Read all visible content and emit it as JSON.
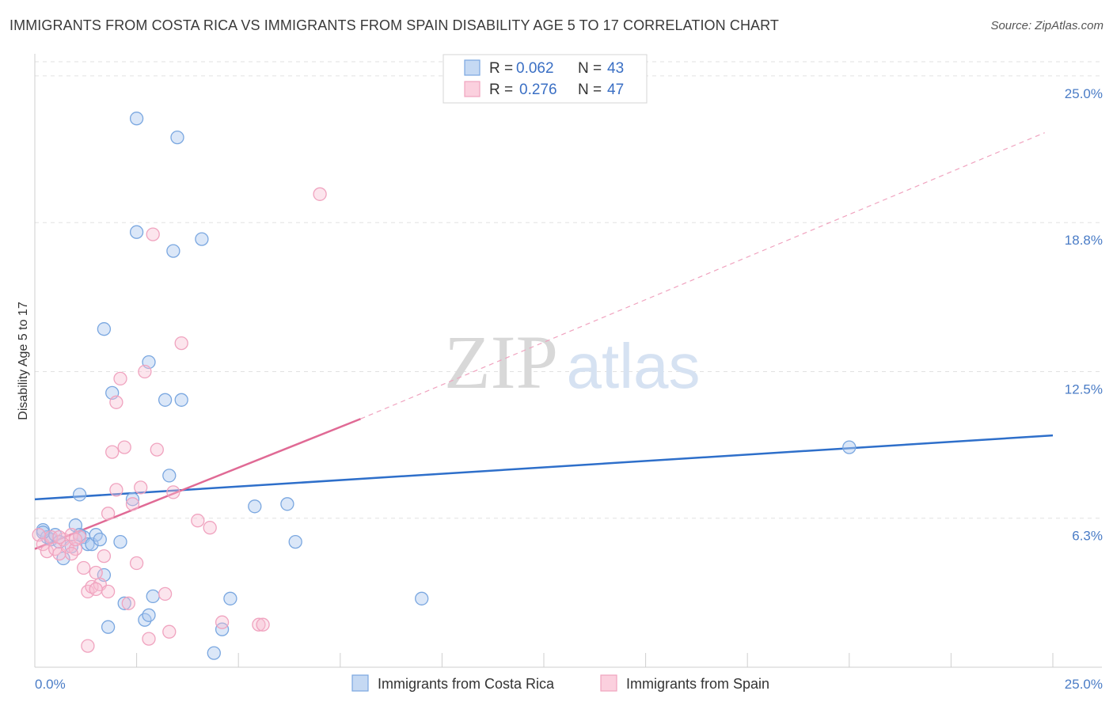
{
  "title": "IMMIGRANTS FROM COSTA RICA VS IMMIGRANTS FROM SPAIN DISABILITY AGE 5 TO 17 CORRELATION CHART",
  "source": "Source: ZipAtlas.com",
  "watermark": {
    "zip": "ZIP",
    "atlas": "atlas"
  },
  "chart_data": {
    "type": "scatter",
    "ylabel": "Disability Age 5 to 17",
    "x_ticks": [
      "0.0%",
      "25.0%"
    ],
    "y_ticks": [
      "6.3%",
      "12.5%",
      "18.8%",
      "25.0%"
    ],
    "xlim": [
      0,
      25
    ],
    "ylim": [
      0,
      25.6
    ],
    "grid": true,
    "legend_placement": "top-center",
    "legend": {
      "r_label": "R =",
      "n_label": "N =",
      "entries": [
        {
          "r": "0.062",
          "n": "43"
        },
        {
          "r": "0.276",
          "n": "47"
        }
      ]
    },
    "series": [
      {
        "name": "Immigrants from Costa Rica",
        "color": "#7aa7e0",
        "line_color": "#2e6fca",
        "trend": {
          "x0": 0,
          "y0": 7.1,
          "x1": 25,
          "y1": 9.8
        },
        "points": [
          [
            0.2,
            5.8
          ],
          [
            0.3,
            5.5
          ],
          [
            0.4,
            5.4
          ],
          [
            0.5,
            5.6
          ],
          [
            0.6,
            5.3
          ],
          [
            0.7,
            4.6
          ],
          [
            0.9,
            5.1
          ],
          [
            1.0,
            6.0
          ],
          [
            1.1,
            7.3
          ],
          [
            1.2,
            5.5
          ],
          [
            1.3,
            5.2
          ],
          [
            1.4,
            5.2
          ],
          [
            1.5,
            5.6
          ],
          [
            1.6,
            5.4
          ],
          [
            1.7,
            3.9
          ],
          [
            1.8,
            1.7
          ],
          [
            1.7,
            14.3
          ],
          [
            1.9,
            11.6
          ],
          [
            2.1,
            5.3
          ],
          [
            2.2,
            2.7
          ],
          [
            2.4,
            7.1
          ],
          [
            2.5,
            23.2
          ],
          [
            2.7,
            2.0
          ],
          [
            2.8,
            2.2
          ],
          [
            2.8,
            12.9
          ],
          [
            2.9,
            3.0
          ],
          [
            3.2,
            11.3
          ],
          [
            3.3,
            8.1
          ],
          [
            3.4,
            17.6
          ],
          [
            3.5,
            22.4
          ],
          [
            3.6,
            11.3
          ],
          [
            4.1,
            18.1
          ],
          [
            4.4,
            0.6
          ],
          [
            4.6,
            1.6
          ],
          [
            4.8,
            2.9
          ],
          [
            5.4,
            6.8
          ],
          [
            6.2,
            6.9
          ],
          [
            6.4,
            5.3
          ],
          [
            9.5,
            2.9
          ],
          [
            2.5,
            18.4
          ],
          [
            20.0,
            9.3
          ],
          [
            0.2,
            5.7
          ],
          [
            1.1,
            5.6
          ]
        ]
      },
      {
        "name": "Immigrants from Spain",
        "color": "#f0a3bf",
        "line_color": "#e06a95",
        "trend": {
          "x0": 0,
          "y0": 5.0,
          "x1": 8.0,
          "y1": 10.5
        },
        "trend_ext": {
          "x0": 8.0,
          "y0": 10.5,
          "x1": 24.8,
          "y1": 22.6
        },
        "points": [
          [
            0.1,
            5.6
          ],
          [
            0.2,
            5.2
          ],
          [
            0.3,
            4.9
          ],
          [
            0.4,
            5.5
          ],
          [
            0.5,
            5.0
          ],
          [
            0.6,
            4.8
          ],
          [
            0.7,
            5.4
          ],
          [
            0.8,
            5.1
          ],
          [
            0.9,
            5.6
          ],
          [
            1.0,
            5.0
          ],
          [
            1.1,
            5.5
          ],
          [
            1.2,
            4.2
          ],
          [
            1.3,
            3.2
          ],
          [
            1.4,
            3.4
          ],
          [
            1.5,
            4.0
          ],
          [
            1.6,
            3.5
          ],
          [
            1.7,
            4.7
          ],
          [
            1.8,
            6.5
          ],
          [
            1.8,
            3.2
          ],
          [
            1.9,
            9.1
          ],
          [
            2.0,
            11.2
          ],
          [
            2.0,
            7.5
          ],
          [
            2.1,
            12.2
          ],
          [
            2.2,
            9.3
          ],
          [
            2.3,
            2.7
          ],
          [
            2.4,
            6.9
          ],
          [
            2.5,
            4.4
          ],
          [
            2.6,
            7.6
          ],
          [
            2.7,
            12.5
          ],
          [
            2.9,
            18.3
          ],
          [
            2.8,
            1.2
          ],
          [
            3.0,
            9.2
          ],
          [
            3.2,
            3.1
          ],
          [
            3.3,
            1.5
          ],
          [
            3.4,
            7.4
          ],
          [
            3.6,
            13.7
          ],
          [
            4.0,
            6.2
          ],
          [
            4.3,
            5.9
          ],
          [
            4.6,
            1.9
          ],
          [
            5.5,
            1.8
          ],
          [
            5.6,
            1.8
          ],
          [
            7.0,
            20.0
          ],
          [
            1.3,
            0.9
          ],
          [
            0.6,
            5.5
          ],
          [
            1.0,
            5.4
          ],
          [
            1.5,
            3.3
          ],
          [
            0.9,
            4.8
          ]
        ]
      }
    ]
  }
}
